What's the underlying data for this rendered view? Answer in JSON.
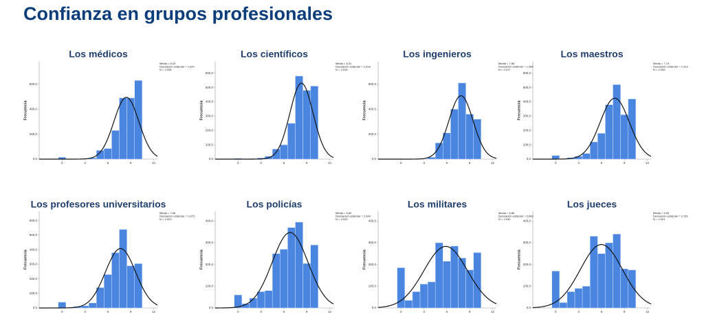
{
  "title": "Confianza en grupos profesionales",
  "chart_data": [
    {
      "type": "histogram",
      "title": "Los médicos",
      "y_label": "Frecuencia",
      "bins": [
        -0.5,
        0.5,
        1.5,
        2.5,
        3.5,
        4.5,
        5.5,
        6.5,
        7.5,
        8.5,
        9.5,
        10.5
      ],
      "values": [
        15,
        0,
        0,
        0,
        10,
        70,
        85,
        230,
        490,
        490,
        630
      ],
      "color": "#4a86e0",
      "mean": 8.43,
      "sd": 1.642,
      "n": 2038,
      "stats_labels": [
        "Media = 8,43",
        "Desviación estándar = 1,642",
        "N = 2.038"
      ],
      "xlim": [
        -3,
        12.5
      ],
      "xticks": [
        0,
        3,
        6,
        9,
        12
      ],
      "ylim": [
        0,
        780
      ],
      "yticks": [
        {
          "value": 0,
          "label": "0,0"
        },
        {
          "value": 200,
          "label": "200,0"
        },
        {
          "value": 400,
          "label": "400,0"
        },
        {
          "value": 600,
          "label": "600,0"
        }
      ]
    },
    {
      "type": "histogram",
      "title": "Los científicos",
      "y_label": "Frecuencia",
      "bins": [
        -0.5,
        0.5,
        1.5,
        2.5,
        3.5,
        4.5,
        5.5,
        6.5,
        7.5,
        8.5,
        9.5,
        10.5
      ],
      "values": [
        5,
        0,
        3,
        8,
        20,
        70,
        100,
        250,
        580,
        480,
        510
      ],
      "color": "#4a86e0",
      "mean": 8.31,
      "sd": 1.518,
      "n": 2018,
      "stats_labels": [
        "Media = 8,31",
        "Desviación estándar = 1,518",
        "N = 2.018"
      ],
      "xlim": [
        -3,
        12.5
      ],
      "xticks": [
        0,
        3,
        6,
        9,
        12
      ],
      "ylim": [
        0,
        680
      ],
      "yticks": [
        {
          "value": 0,
          "label": "0,0"
        },
        {
          "value": 100,
          "label": "100,0"
        },
        {
          "value": 200,
          "label": "200,0"
        },
        {
          "value": 300,
          "label": "300,0"
        },
        {
          "value": 400,
          "label": "400,0"
        },
        {
          "value": 500,
          "label": "500,0"
        },
        {
          "value": 600,
          "label": "600,0"
        }
      ]
    },
    {
      "type": "histogram",
      "title": "Los ingenieros",
      "y_label": "Frecuencia",
      "bins": [
        -0.5,
        0.5,
        1.5,
        2.5,
        3.5,
        4.5,
        5.5,
        6.5,
        7.5,
        8.5,
        9.5,
        10.5
      ],
      "values": [
        2,
        0,
        0,
        3,
        15,
        130,
        210,
        400,
        610,
        360,
        320
      ],
      "color": "#4a86e0",
      "mean": 7.86,
      "sd": 1.585,
      "n": 2017,
      "stats_labels": [
        "Media = 7,86",
        "Desviación estándar = 1,585",
        "N = 2.017"
      ],
      "xlim": [
        -3,
        12.5
      ],
      "xticks": [
        0,
        3,
        6,
        9,
        12
      ],
      "ylim": [
        0,
        780
      ],
      "yticks": [
        {
          "value": 0,
          "label": "0,0"
        },
        {
          "value": 200,
          "label": "200,0"
        },
        {
          "value": 400,
          "label": "400,0"
        },
        {
          "value": 600,
          "label": "600,0"
        }
      ]
    },
    {
      "type": "histogram",
      "title": "Los maestros",
      "y_label": "Frecuencia",
      "bins": [
        -0.5,
        0.5,
        1.5,
        2.5,
        3.5,
        4.5,
        5.5,
        6.5,
        7.5,
        8.5,
        9.5,
        10.5
      ],
      "values": [
        25,
        0,
        10,
        20,
        40,
        120,
        180,
        380,
        520,
        310,
        420
      ],
      "color": "#4a86e0",
      "mean": 7.74,
      "sd": 1.912,
      "n": 2039,
      "stats_labels": [
        "Media = 7,74",
        "Desviación estándar = 1,912",
        "N = 2.039"
      ],
      "xlim": [
        -3,
        12.5
      ],
      "xticks": [
        0,
        3,
        6,
        9,
        12
      ],
      "ylim": [
        0,
        680
      ],
      "yticks": [
        {
          "value": 0,
          "label": "0,0"
        },
        {
          "value": 100,
          "label": "100,0"
        },
        {
          "value": 200,
          "label": "200,0"
        },
        {
          "value": 300,
          "label": "300,0"
        },
        {
          "value": 400,
          "label": "400,0"
        },
        {
          "value": 500,
          "label": "500,0"
        },
        {
          "value": 600,
          "label": "600,0"
        }
      ]
    },
    {
      "type": "histogram",
      "title": "Los profesores universitarios",
      "y_label": "Frecuencia",
      "bins": [
        -0.5,
        0.5,
        1.5,
        2.5,
        3.5,
        4.5,
        5.5,
        6.5,
        7.5,
        8.5,
        9.5,
        10.5
      ],
      "values": [
        40,
        0,
        10,
        15,
        35,
        140,
        230,
        380,
        540,
        290,
        305
      ],
      "color": "#4a86e0",
      "mean": 7.66,
      "sd": 1.975,
      "n": 2023,
      "stats_labels": [
        "Media = 7,66",
        "Desviación estándar = 1,975",
        "N = 2.023"
      ],
      "xlim": [
        -3,
        12.5
      ],
      "xticks": [
        0,
        3,
        6,
        9,
        12
      ],
      "ylim": [
        0,
        665
      ],
      "yticks": [
        {
          "value": 0,
          "label": "0,0"
        },
        {
          "value": 100,
          "label": "100,0"
        },
        {
          "value": 200,
          "label": "200,0"
        },
        {
          "value": 300,
          "label": "300,0"
        },
        {
          "value": 400,
          "label": "400,0"
        },
        {
          "value": 500,
          "label": "500,0"
        },
        {
          "value": 600,
          "label": "600,0"
        }
      ]
    },
    {
      "type": "histogram",
      "title": "Los policías",
      "y_label": "Frecuencia",
      "bins": [
        -0.5,
        0.5,
        1.5,
        2.5,
        3.5,
        4.5,
        5.5,
        6.5,
        7.5,
        8.5,
        9.5,
        10.5
      ],
      "values": [
        60,
        20,
        45,
        75,
        80,
        250,
        270,
        370,
        395,
        205,
        290
      ],
      "color": "#4a86e0",
      "mean": 6.82,
      "sd": 2.344,
      "n": 2040,
      "stats_labels": [
        "Media = 6,82",
        "Desviación estándar = 2,344",
        "N = 2.040"
      ],
      "xlim": [
        -3,
        12.5
      ],
      "xticks": [
        0,
        3,
        6,
        9,
        12
      ],
      "ylim": [
        0,
        445
      ],
      "yticks": [
        {
          "value": 0,
          "label": "0,0"
        },
        {
          "value": 100,
          "label": "100,0"
        },
        {
          "value": 200,
          "label": "200,0"
        },
        {
          "value": 300,
          "label": "300,0"
        },
        {
          "value": 400,
          "label": "400,0"
        }
      ]
    },
    {
      "type": "histogram",
      "title": "Los militares",
      "y_label": "Frecuencia",
      "bins": [
        -0.5,
        0.5,
        1.5,
        2.5,
        3.5,
        4.5,
        5.5,
        6.5,
        7.5,
        8.5,
        9.5,
        10.5
      ],
      "values": [
        185,
        35,
        75,
        110,
        120,
        300,
        215,
        285,
        230,
        175,
        255
      ],
      "color": "#4a86e0",
      "mean": 5.86,
      "sd": 2.86,
      "n": 2030,
      "stats_labels": [
        "Media = 5,86",
        "Desviación estándar = 2,860",
        "N = 2.030"
      ],
      "xlim": [
        -3,
        12.5
      ],
      "xticks": [
        0,
        3,
        6,
        9,
        12
      ],
      "ylim": [
        0,
        445
      ],
      "yticks": [
        {
          "value": 0,
          "label": "0,0"
        },
        {
          "value": 100,
          "label": "100,0"
        },
        {
          "value": 200,
          "label": "200,0"
        },
        {
          "value": 300,
          "label": "300,0"
        },
        {
          "value": 400,
          "label": "400,0"
        }
      ]
    },
    {
      "type": "histogram",
      "title": "Los jueces",
      "y_label": "Frecuencia",
      "bins": [
        -0.5,
        0.5,
        1.5,
        2.5,
        3.5,
        4.5,
        5.5,
        6.5,
        7.5,
        8.5,
        9.5,
        10.5
      ],
      "values": [
        170,
        25,
        75,
        90,
        100,
        330,
        250,
        300,
        340,
        180,
        175
      ],
      "color": "#4a86e0",
      "mean": 5.99,
      "sd": 2.761,
      "n": 2021,
      "stats_labels": [
        "Media = 5,99",
        "Desviación estándar = 2,761",
        "N = 2.021"
      ],
      "xlim": [
        -3,
        12.5
      ],
      "xticks": [
        0,
        3,
        6,
        9,
        12
      ],
      "ylim": [
        0,
        445
      ],
      "yticks": [
        {
          "value": 0,
          "label": "0,0"
        },
        {
          "value": 100,
          "label": "100,0"
        },
        {
          "value": 200,
          "label": "200,0"
        },
        {
          "value": 300,
          "label": "300,0"
        },
        {
          "value": 400,
          "label": "400,0"
        }
      ]
    }
  ]
}
